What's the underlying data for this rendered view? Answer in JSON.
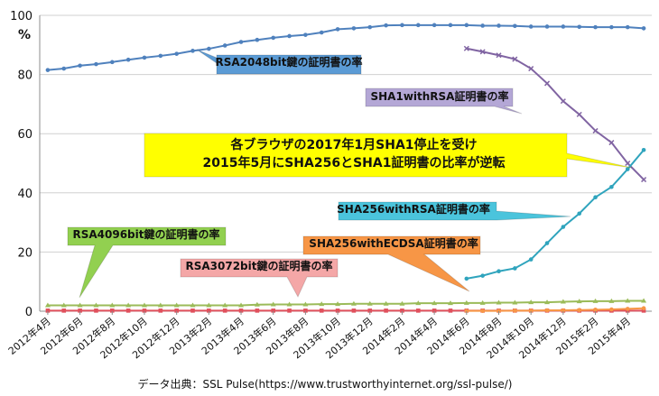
{
  "chart_data": {
    "type": "line",
    "title": "",
    "ylabel": "%",
    "xlabel": "",
    "ylim": [
      0,
      100
    ],
    "yticks": [
      "0",
      "20",
      "40",
      "60",
      "80",
      "100"
    ],
    "categories": [
      "2012年4月",
      "2012年5月",
      "2012年6月",
      "2012年7月",
      "2012年8月",
      "2012年9月",
      "2012年10月",
      "2012年11月",
      "2012年12月",
      "2013年1月",
      "2013年2月",
      "2013年3月",
      "2013年4月",
      "2013年5月",
      "2013年6月",
      "2013年7月",
      "2013年8月",
      "2013年9月",
      "2013年10月",
      "2013年11月",
      "2013年12月",
      "2014年1月",
      "2014年2月",
      "2014年3月",
      "2014年4月",
      "2014年5月",
      "2014年6月",
      "2014年7月",
      "2014年8月",
      "2014年9月",
      "2014年10月",
      "2014年11月",
      "2014年12月",
      "2015年1月",
      "2015年2月",
      "2015年3月",
      "2015年4月",
      "2015年5月"
    ],
    "xtick_labels": [
      "2012年4月",
      "2012年6月",
      "2012年8月",
      "2012年10月",
      "2012年12月",
      "2013年2月",
      "2013年4月",
      "2013年6月",
      "2013年8月",
      "2013年10月",
      "2013年12月",
      "2014年2月",
      "2014年4月",
      "2014年6月",
      "2014年8月",
      "2014年10月",
      "2014年12月",
      "2015年2月",
      "2015年4月"
    ],
    "series": [
      {
        "name": "RSA2048bit鍵の証明書の率",
        "color": "#4f81bd",
        "marker": "circle",
        "values": [
          81.5,
          82,
          83,
          83.5,
          84.2,
          85,
          85.7,
          86.3,
          87,
          88,
          88.7,
          89.8,
          91,
          91.7,
          92.4,
          93,
          93.4,
          94.2,
          95.3,
          95.6,
          96,
          96.6,
          96.7,
          96.7,
          96.7,
          96.7,
          96.7,
          96.5,
          96.5,
          96.4,
          96.2,
          96.2,
          96.2,
          96.1,
          96,
          96,
          96,
          95.6
        ]
      },
      {
        "name": "SHA1withRSA証明書の率",
        "color": "#8064a2",
        "marker": "x",
        "values": [
          null,
          null,
          null,
          null,
          null,
          null,
          null,
          null,
          null,
          null,
          null,
          null,
          null,
          null,
          null,
          null,
          null,
          null,
          null,
          null,
          null,
          null,
          null,
          null,
          null,
          null,
          88.8,
          87.7,
          86.5,
          85.2,
          82,
          77,
          71,
          66.5,
          61,
          57,
          50,
          44.5
        ]
      },
      {
        "name": "SHA256withRSA証明書の率",
        "color": "#2fa4bd",
        "marker": "circle",
        "values": [
          null,
          null,
          null,
          null,
          null,
          null,
          null,
          null,
          null,
          null,
          null,
          null,
          null,
          null,
          null,
          null,
          null,
          null,
          null,
          null,
          null,
          null,
          null,
          null,
          null,
          null,
          11,
          12,
          13.5,
          14.5,
          17.5,
          23,
          28.5,
          33,
          38.5,
          42,
          48,
          54.5
        ]
      },
      {
        "name": "RSA4096bit鍵の証明書の率",
        "color": "#9bbb59",
        "marker": "triangle",
        "values": [
          2,
          2,
          2,
          2,
          2,
          2,
          2,
          2,
          2,
          2,
          2,
          2,
          2,
          2.2,
          2.3,
          2.3,
          2.3,
          2.4,
          2.4,
          2.5,
          2.5,
          2.5,
          2.5,
          2.7,
          2.7,
          2.7,
          2.8,
          2.8,
          2.9,
          2.9,
          3,
          3,
          3.2,
          3.3,
          3.4,
          3.4,
          3.5,
          3.5
        ]
      },
      {
        "name": "RSA3072bit鍵の証明書の率",
        "color": "#e0505c",
        "marker": "square",
        "values": [
          0.2,
          0.2,
          0.2,
          0.2,
          0.2,
          0.2,
          0.2,
          0.2,
          0.2,
          0.2,
          0.2,
          0.2,
          0.2,
          0.2,
          0.2,
          0.2,
          0.2,
          0.2,
          0.2,
          0.2,
          0.2,
          0.2,
          0.2,
          0.2,
          0.2,
          0.2,
          0.2,
          0.2,
          0.2,
          0.2,
          0.2,
          0.2,
          0.2,
          0.2,
          0.2,
          0.2,
          0.2,
          0.2
        ]
      },
      {
        "name": "SHA256withECDSA証明書の率",
        "color": "#f79646",
        "marker": "circle",
        "values": [
          null,
          null,
          null,
          null,
          null,
          null,
          null,
          null,
          null,
          null,
          null,
          null,
          null,
          null,
          null,
          null,
          null,
          null,
          null,
          null,
          null,
          null,
          null,
          null,
          null,
          null,
          0.1,
          0.1,
          0.1,
          0.2,
          0.2,
          0.3,
          0.3,
          0.4,
          0.5,
          0.6,
          0.8,
          1
        ]
      }
    ],
    "callouts": {
      "rsa2048": "RSA2048bit鍵の証明書の率",
      "sha1": "SHA1withRSA証明書の率",
      "sha256rsa": "SHA256withRSA証明書の率",
      "rsa4096": "RSA4096bit鍵の証明書の率",
      "ecdsa": "SHA256withECDSA証明書の率",
      "rsa3072": "RSA3072bit鍵の証明書の率",
      "main_line1": "各ブラウザの2017年1月SHA1停止を受け",
      "main_line2": "2015年5月にSHA256とSHA1証明書の比率が逆転"
    },
    "callout_colors": {
      "rsa2048": "#5b9bd5",
      "sha1": "#b4a7d6",
      "sha256rsa": "#4bc4dc",
      "rsa4096": "#92d050",
      "ecdsa": "#f79646",
      "rsa3072": "#f4a7a7",
      "main": "#ffff00"
    },
    "source": "データ出典：SSL Pulse(https://www.trustworthyinternet.org/ssl-pulse/)"
  }
}
